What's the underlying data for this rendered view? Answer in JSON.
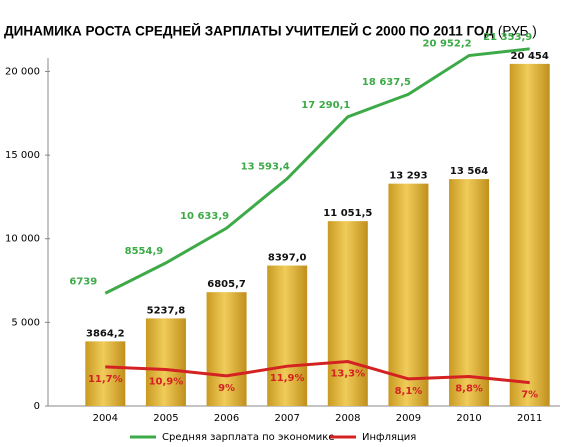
{
  "chart_data": {
    "type": "bar",
    "title": "ДИНАМИКА РОСТА СРЕДНЕЙ ЗАРПЛАТЫ УЧИТЕЛЕЙ С 2000 ПО 2011 ГОД",
    "subtitle": "(РУБ.)",
    "categories": [
      "2004",
      "2005",
      "2006",
      "2007",
      "2008",
      "2009",
      "2010",
      "2011"
    ],
    "values": [
      3864.2,
      5237.8,
      6805.7,
      8397.0,
      11051.5,
      13293,
      13564,
      20454
    ],
    "value_labels": [
      "3864,2",
      "5237,8",
      "6805,7",
      "8397,0",
      "11 051,5",
      "13 293",
      "13 564",
      "20 454"
    ],
    "color": "#e2b43a",
    "series": [
      {
        "name": "Средняя зарплата по экономике",
        "color": "#3daa48",
        "type": "line",
        "values": [
          6739,
          8554.9,
          10633.9,
          13593.4,
          17290.1,
          18637.5,
          20952.2,
          21353.9
        ],
        "value_labels": [
          "6739",
          "8554,9",
          "10 633,9",
          "13 593,4",
          "17 290,1",
          "18 637,5",
          "20 952,2",
          "21 353,9"
        ]
      },
      {
        "name": "Инфляция",
        "color": "#d42222",
        "type": "line",
        "axis": "y2",
        "values": [
          11.7,
          10.9,
          9,
          11.9,
          13.3,
          8.1,
          8.8,
          7
        ],
        "value_labels": [
          "11,7%",
          "10,9%",
          "9%",
          "11,9%",
          "13,3%",
          "8,1%",
          "8,8%",
          "7%"
        ]
      }
    ],
    "ylim": [
      0,
      22000
    ],
    "yticks": [
      0,
      {
        "value": 5000,
        "label": "5 000"
      },
      {
        "value": 10000,
        "label": "10 000"
      },
      {
        "value": 15000,
        "label": "15 000"
      },
      {
        "value": 20000,
        "label": "20 000"
      }
    ],
    "y2lim": [
      0,
      110
    ]
  }
}
